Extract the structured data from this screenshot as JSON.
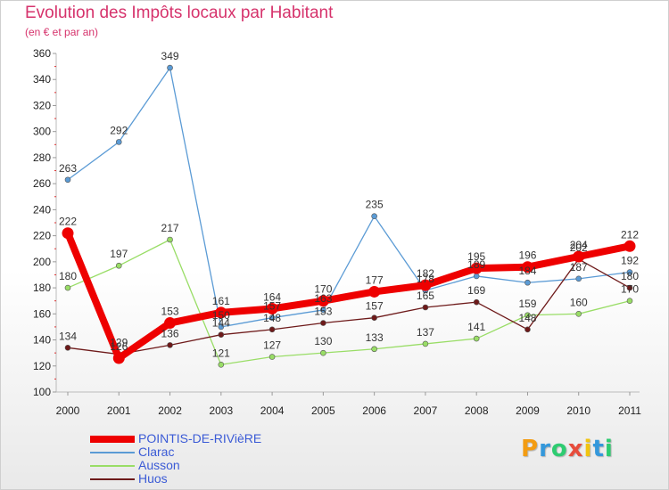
{
  "chart_data": {
    "type": "line",
    "title": "Evolution des Impôts locaux par Habitant",
    "subtitle": "(en € et par an)",
    "xlabel": "",
    "ylabel": "",
    "categories": [
      "2000",
      "2001",
      "2002",
      "2003",
      "2004",
      "2005",
      "2006",
      "2007",
      "2008",
      "2009",
      "2010",
      "2011"
    ],
    "ylim": [
      100,
      360
    ],
    "yticks": [
      "100",
      "120",
      "140",
      "160",
      "180",
      "200",
      "220",
      "240",
      "260",
      "280",
      "300",
      "320",
      "340",
      "360"
    ],
    "grid": false,
    "legend_position": "bottom-left",
    "series": [
      {
        "name": "POINTIS-DE-RIVièRE",
        "color": "#ee0000",
        "values": [
          222,
          126,
          153,
          161,
          164,
          170,
          177,
          182,
          195,
          196,
          204,
          212
        ]
      },
      {
        "name": "Clarac",
        "color": "#5b9bd5",
        "values": [
          263,
          292,
          349,
          150,
          157,
          163,
          235,
          178,
          189,
          184,
          187,
          192
        ]
      },
      {
        "name": "Ausson",
        "color": "#99dd66",
        "values": [
          180,
          197,
          217,
          121,
          127,
          130,
          133,
          137,
          141,
          159,
          160,
          170
        ]
      },
      {
        "name": "Huos",
        "color": "#6e1a1a",
        "values": [
          134,
          129,
          136,
          144,
          148,
          153,
          157,
          165,
          169,
          148,
          202,
          180
        ]
      }
    ]
  },
  "logo": {
    "letters": [
      "P",
      "r",
      "o",
      "x",
      "i",
      "t",
      "i"
    ],
    "colors": [
      "#f39c12",
      "#3498db",
      "#2ecc71",
      "#e74c3c",
      "#f1c40f",
      "#3498db",
      "#2ecc71"
    ]
  }
}
